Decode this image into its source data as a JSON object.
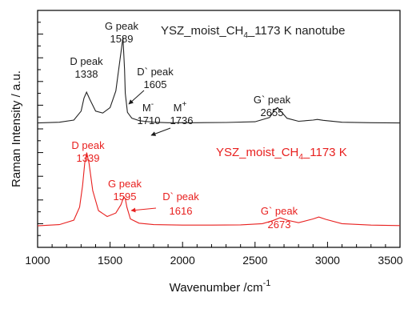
{
  "chart_data": {
    "type": "line",
    "xlabel": "Wavenumber /cm",
    "xlabel_sup": "-1",
    "ylabel": "Raman Intensity / a.u.",
    "xlim": [
      1000,
      3500
    ],
    "ylim": [
      0,
      1
    ],
    "xticks": [
      "1000",
      "1500",
      "2000",
      "2500",
      "3000",
      "3500"
    ],
    "grid": false,
    "colors": {
      "nanotube": "#222222",
      "film": "#e8201f",
      "axis": "#000000"
    },
    "series": [
      {
        "key": "nanotube",
        "name_parts": [
          "YSZ_moist_CH",
          "4",
          "_1173 K nanotube"
        ],
        "color": "#222222",
        "x": [
          1000,
          1150,
          1250,
          1300,
          1320,
          1338,
          1360,
          1400,
          1450,
          1500,
          1540,
          1570,
          1589,
          1600,
          1605,
          1620,
          1650,
          1700,
          1710,
          1736,
          1800,
          1900,
          2100,
          2300,
          2500,
          2600,
          2640,
          2655,
          2670,
          2720,
          2800,
          2900,
          2930,
          2970,
          3100,
          3300,
          3500
        ],
        "y": [
          0.525,
          0.528,
          0.537,
          0.575,
          0.63,
          0.655,
          0.625,
          0.575,
          0.567,
          0.59,
          0.66,
          0.8,
          0.885,
          0.75,
          0.65,
          0.57,
          0.545,
          0.535,
          0.534,
          0.532,
          0.528,
          0.526,
          0.526,
          0.527,
          0.53,
          0.548,
          0.583,
          0.59,
          0.58,
          0.545,
          0.532,
          0.537,
          0.54,
          0.536,
          0.528,
          0.526,
          0.525
        ]
      },
      {
        "key": "film",
        "name_parts": [
          "YSZ_moist_CH",
          "4",
          "_1173 K"
        ],
        "color": "#e8201f",
        "x": [
          1000,
          1150,
          1250,
          1290,
          1310,
          1325,
          1339,
          1355,
          1380,
          1420,
          1480,
          1540,
          1575,
          1595,
          1605,
          1616,
          1640,
          1700,
          1800,
          2000,
          2200,
          2400,
          2550,
          2620,
          2673,
          2720,
          2800,
          2900,
          2940,
          2990,
          3100,
          3300,
          3500
        ],
        "y": [
          0.091,
          0.096,
          0.115,
          0.17,
          0.26,
          0.355,
          0.4,
          0.355,
          0.24,
          0.155,
          0.13,
          0.145,
          0.18,
          0.214,
          0.205,
          0.17,
          0.12,
          0.102,
          0.096,
          0.094,
          0.094,
          0.095,
          0.1,
          0.112,
          0.125,
          0.115,
          0.104,
          0.12,
          0.128,
          0.118,
          0.1,
          0.094,
          0.092
        ]
      }
    ],
    "annotations": [
      {
        "key": "d_peak_tube",
        "lines": [
          "D peak",
          "1338"
        ],
        "color": "black"
      },
      {
        "key": "g_peak_tube",
        "lines": [
          "G peak",
          "1589"
        ],
        "color": "black"
      },
      {
        "key": "dprime_peak_tube",
        "lines": [
          "D` peak",
          "1605"
        ],
        "color": "black"
      },
      {
        "key": "m_minus",
        "lines": [
          "M",
          "1710"
        ],
        "sup": "-",
        "color": "black"
      },
      {
        "key": "m_plus",
        "lines": [
          "M",
          "1736"
        ],
        "sup": "+",
        "color": "black"
      },
      {
        "key": "gprime_peak_tube",
        "lines": [
          "G` peak",
          "2655"
        ],
        "color": "black"
      },
      {
        "key": "d_peak_film",
        "lines": [
          "D peak",
          "1339"
        ],
        "color": "red"
      },
      {
        "key": "g_peak_film",
        "lines": [
          "G peak",
          "1595"
        ],
        "color": "red"
      },
      {
        "key": "dprime_peak_film",
        "lines": [
          "D` peak",
          "1616"
        ],
        "color": "red"
      },
      {
        "key": "gprime_peak_film",
        "lines": [
          "G` peak",
          "2673"
        ],
        "color": "red"
      }
    ]
  }
}
